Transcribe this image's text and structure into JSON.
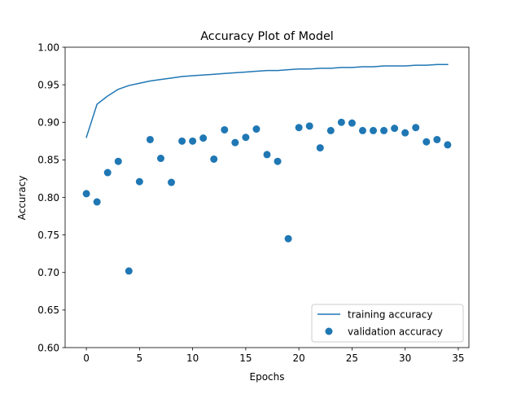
{
  "chart_data": {
    "type": "line",
    "title": "Accuracy Plot of Model",
    "xlabel": "Epochs",
    "ylabel": "Accuracy",
    "xlim": [
      -2,
      36
    ],
    "ylim": [
      0.6,
      1.0
    ],
    "xticks": [
      0,
      5,
      10,
      15,
      20,
      25,
      30,
      35
    ],
    "yticks": [
      0.6,
      0.65,
      0.7,
      0.75,
      0.8,
      0.85,
      0.9,
      0.95,
      1.0
    ],
    "ytick_labels": [
      "0.60",
      "0.65",
      "0.70",
      "0.75",
      "0.80",
      "0.85",
      "0.90",
      "0.95",
      "1.00"
    ],
    "grid": false,
    "legend_position": "bottom-right",
    "series": [
      {
        "name": "training accuracy",
        "kind": "line",
        "color": "#1f77b4",
        "x": [
          0,
          1,
          2,
          3,
          4,
          5,
          6,
          7,
          8,
          9,
          10,
          11,
          12,
          13,
          14,
          15,
          16,
          17,
          18,
          19,
          20,
          21,
          22,
          23,
          24,
          25,
          26,
          27,
          28,
          29,
          30,
          31,
          32,
          33,
          34
        ],
        "values": [
          0.88,
          0.924,
          0.935,
          0.944,
          0.949,
          0.952,
          0.955,
          0.957,
          0.959,
          0.961,
          0.962,
          0.963,
          0.964,
          0.965,
          0.966,
          0.967,
          0.968,
          0.969,
          0.969,
          0.97,
          0.971,
          0.971,
          0.972,
          0.972,
          0.973,
          0.973,
          0.974,
          0.974,
          0.975,
          0.975,
          0.975,
          0.976,
          0.976,
          0.977,
          0.977
        ]
      },
      {
        "name": "validation accuracy",
        "kind": "scatter",
        "color": "#1f77b4",
        "x": [
          0,
          1,
          2,
          3,
          4,
          5,
          6,
          7,
          8,
          9,
          10,
          11,
          12,
          13,
          14,
          15,
          16,
          17,
          18,
          19,
          20,
          21,
          22,
          23,
          24,
          25,
          26,
          27,
          28,
          29,
          30,
          31,
          32,
          33,
          34
        ],
        "values": [
          0.805,
          0.794,
          0.833,
          0.848,
          0.702,
          0.821,
          0.877,
          0.852,
          0.82,
          0.875,
          0.875,
          0.879,
          0.851,
          0.89,
          0.873,
          0.88,
          0.891,
          0.857,
          0.848,
          0.745,
          0.893,
          0.895,
          0.866,
          0.889,
          0.9,
          0.899,
          0.889,
          0.889,
          0.889,
          0.892,
          0.886,
          0.893,
          0.874,
          0.877,
          0.87
        ]
      }
    ]
  }
}
